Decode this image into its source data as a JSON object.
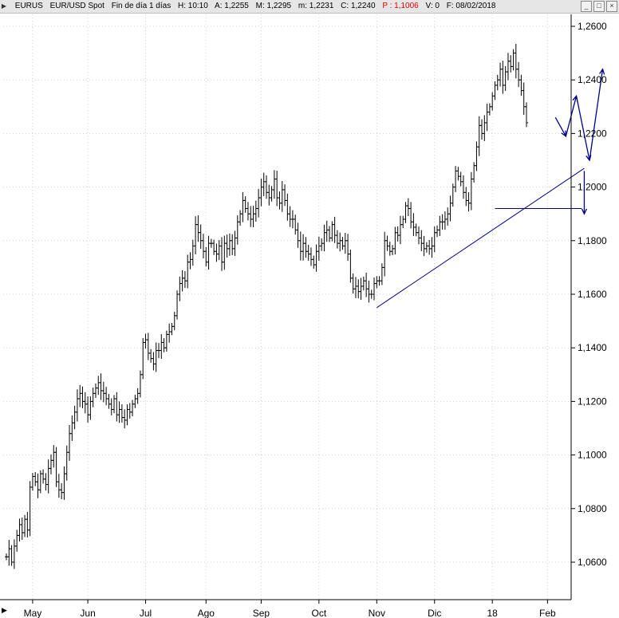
{
  "header": {
    "symbol": "EURUS",
    "description": "EUR/USD Spot",
    "period": "Fin de día 1 días",
    "high": "H: 10:10",
    "open": "A: 1,2255",
    "max": "M: 1,2295",
    "min": "m: 1,2231",
    "close": "C: 1,2240",
    "p": "P : 1,1006",
    "vol": "V: 0",
    "date": "F: 08/02/2018"
  },
  "colors": {
    "bars": "#000000",
    "trendline": "#00008b",
    "highlight": "#e00000"
  },
  "chart_data": {
    "type": "ohlc",
    "ylim": [
      1.056,
      1.264
    ],
    "yticks": [
      "1,2600",
      "1,2400",
      "1,2200",
      "1,2000",
      "1,1800",
      "1,1600",
      "1,1400",
      "1,1200",
      "1,1000",
      "1,0800",
      "1,0600"
    ],
    "ytick_values": [
      1.26,
      1.24,
      1.22,
      1.2,
      1.18,
      1.16,
      1.14,
      1.12,
      1.1,
      1.08,
      1.06
    ],
    "xticks": [
      "May",
      "Jun",
      "Jul",
      "Ago",
      "Sep",
      "Oct",
      "Nov",
      "Dic",
      "18",
      "Feb"
    ],
    "xtick_index": [
      10,
      31,
      53,
      76,
      97,
      119,
      141,
      163,
      185,
      206
    ],
    "closes": [
      1.062,
      1.065,
      1.06,
      1.066,
      1.07,
      1.074,
      1.071,
      1.076,
      1.072,
      1.088,
      1.092,
      1.09,
      1.087,
      1.093,
      1.091,
      1.089,
      1.095,
      1.098,
      1.101,
      1.09,
      1.087,
      1.086,
      1.093,
      1.101,
      1.108,
      1.112,
      1.116,
      1.121,
      1.123,
      1.12,
      1.119,
      1.115,
      1.12,
      1.123,
      1.125,
      1.127,
      1.124,
      1.123,
      1.121,
      1.119,
      1.117,
      1.121,
      1.115,
      1.117,
      1.114,
      1.113,
      1.117,
      1.116,
      1.119,
      1.121,
      1.123,
      1.13,
      1.142,
      1.143,
      1.138,
      1.136,
      1.134,
      1.139,
      1.139,
      1.142,
      1.14,
      1.145,
      1.146,
      1.148,
      1.152,
      1.16,
      1.164,
      1.166,
      1.165,
      1.172,
      1.173,
      1.178,
      1.186,
      1.183,
      1.18,
      1.176,
      1.172,
      1.179,
      1.179,
      1.176,
      1.175,
      1.178,
      1.172,
      1.179,
      1.177,
      1.18,
      1.177,
      1.181,
      1.187,
      1.19,
      1.195,
      1.192,
      1.19,
      1.188,
      1.19,
      1.192,
      1.196,
      1.2,
      1.202,
      1.198,
      1.196,
      1.199,
      1.203,
      1.196,
      1.194,
      1.199,
      1.195,
      1.19,
      1.188,
      1.188,
      1.184,
      1.18,
      1.176,
      1.179,
      1.176,
      1.175,
      1.173,
      1.171,
      1.176,
      1.178,
      1.179,
      1.183,
      1.184,
      1.181,
      1.186,
      1.182,
      1.179,
      1.18,
      1.178,
      1.18,
      1.175,
      1.166,
      1.162,
      1.163,
      1.161,
      1.163,
      1.165,
      1.162,
      1.16,
      1.16,
      1.164,
      1.165,
      1.165,
      1.17,
      1.18,
      1.178,
      1.176,
      1.177,
      1.183,
      1.182,
      1.186,
      1.188,
      1.193,
      1.192,
      1.187,
      1.185,
      1.183,
      1.181,
      1.179,
      1.177,
      1.178,
      1.177,
      1.178,
      1.183,
      1.184,
      1.187,
      1.187,
      1.188,
      1.19,
      1.194,
      1.2,
      1.206,
      1.204,
      1.202,
      1.198,
      1.195,
      1.194,
      1.203,
      1.208,
      1.215,
      1.223,
      1.22,
      1.224,
      1.228,
      1.23,
      1.234,
      1.238,
      1.24,
      1.244,
      1.238,
      1.243,
      1.247,
      1.245,
      1.25,
      1.244,
      1.24,
      1.236,
      1.23,
      1.224
    ],
    "trendlines": [
      {
        "from": [
          141,
          1.155
        ],
        "to": [
          220,
          1.207
        ]
      },
      {
        "from": [
          186,
          1.192
        ],
        "to": [
          219,
          1.192
        ]
      }
    ],
    "projection": [
      [
        209,
        1.226
      ],
      [
        213,
        1.219
      ],
      [
        217,
        1.234
      ],
      [
        222,
        1.21
      ],
      [
        227,
        1.244
      ]
    ],
    "projection_drop": {
      "from": [
        220,
        1.206
      ],
      "to": [
        220,
        1.19
      ]
    }
  }
}
